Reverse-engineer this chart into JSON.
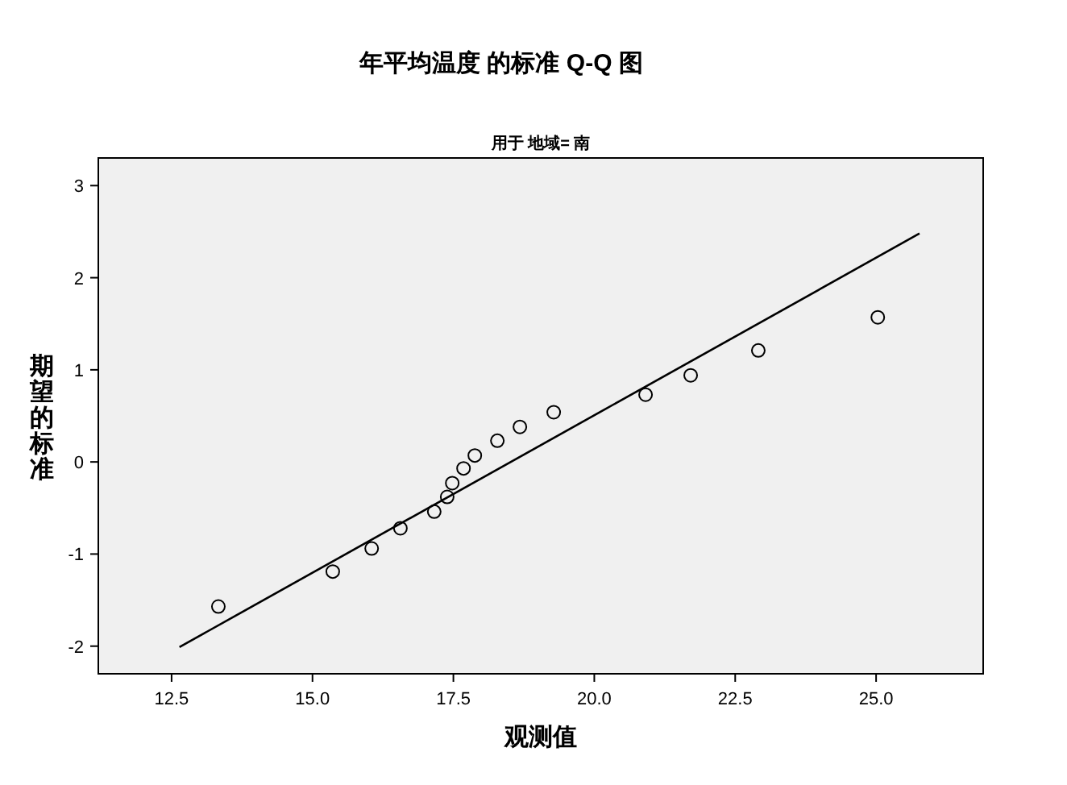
{
  "chart_data": {
    "type": "scatter",
    "title": "年平均温度 的标准 Q-Q 图",
    "subtitle": "用于 地域= 南",
    "xlabel": "观测值",
    "ylabel": "期望的标准",
    "xlim": [
      11.2,
      26.9
    ],
    "ylim": [
      -2.3,
      3.3
    ],
    "xticks": [
      {
        "value": 12.5,
        "label": "12.5"
      },
      {
        "value": 15,
        "label": "15.0"
      },
      {
        "value": 17.5,
        "label": "17.5"
      },
      {
        "value": 20,
        "label": "20.0"
      },
      {
        "value": 22.5,
        "label": "22.5"
      },
      {
        "value": 25,
        "label": "25.0"
      }
    ],
    "yticks": [
      -2,
      -1,
      0,
      1,
      2,
      3
    ],
    "grid": false,
    "marker": "circle",
    "series": [
      {
        "color": "#000000",
        "x": [
          13.33,
          15.36,
          16.05,
          16.56,
          17.16,
          17.39,
          17.48,
          17.68,
          17.88,
          18.28,
          18.68,
          19.28,
          20.91,
          21.71,
          22.91,
          25.03
        ],
        "values": [
          -1.57,
          -1.19,
          -0.94,
          -0.72,
          -0.54,
          -0.38,
          -0.23,
          -0.07,
          0.07,
          0.23,
          0.38,
          0.54,
          0.73,
          0.94,
          1.21,
          1.57
        ]
      },
      {
        "type": "line",
        "color": "#000000",
        "marker": "none",
        "line_style": "solid",
        "x": [
          12.64,
          25.77
        ],
        "values": [
          -2.01,
          2.48
        ]
      }
    ]
  }
}
